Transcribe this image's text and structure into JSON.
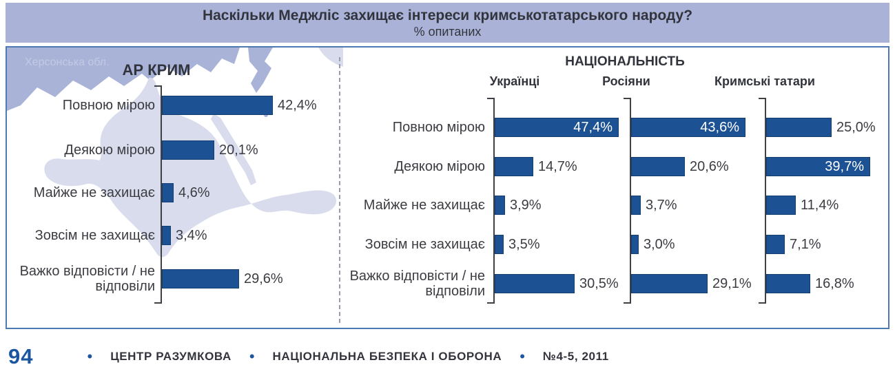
{
  "header": {
    "title": "Наскільки Меджліс захищає інтереси кримськотатарського народу?",
    "subtitle": "% опитаних"
  },
  "map": {
    "region_label": "Херсонська обл."
  },
  "colors": {
    "bar_fill": "#1c5294",
    "bar_border": "#143d70",
    "header_bg": "#aab3d7",
    "panel_border": "#4c79b2",
    "map_dark": "#a9b3d7",
    "map_light": "#d9dcec",
    "accent_blue": "#1c56a0",
    "text_dark": "#3b3c42"
  },
  "chart_data": [
    {
      "type": "bar",
      "orientation": "horizontal",
      "title": "АР КРИМ",
      "categories": [
        "Повною мірою",
        "Деякою мірою",
        "Майже не захищає",
        "Зовсім не захищає",
        "Важко відповісти / не відповіли"
      ],
      "values": [
        42.4,
        20.1,
        4.6,
        3.4,
        29.6
      ],
      "value_suffix": "%",
      "decimal_separator": ",",
      "xlim": [
        0,
        50
      ],
      "grid": false,
      "value_labels": "outside"
    },
    {
      "type": "bar",
      "orientation": "horizontal",
      "title": "НАЦІОНАЛЬНІСТЬ",
      "categories": [
        "Повною мірою",
        "Деякою мірою",
        "Майже не захищає",
        "Зовсім не захищає",
        "Важко відповісти / не відповіли"
      ],
      "series": [
        {
          "name": "Українці",
          "values": [
            47.4,
            14.7,
            3.9,
            3.5,
            30.5
          ]
        },
        {
          "name": "Росіяни",
          "values": [
            43.6,
            20.6,
            3.7,
            3.0,
            29.1
          ]
        },
        {
          "name": "Кримські татари",
          "values": [
            25.0,
            39.7,
            11.4,
            7.1,
            16.8
          ]
        }
      ],
      "value_suffix": "%",
      "decimal_separator": ",",
      "xlim": [
        0,
        50
      ],
      "grid": false,
      "value_labels": "outside, inside-white when value >= 35"
    }
  ],
  "footer": {
    "page_number": "94",
    "separator": "•",
    "publisher": "ЦЕНТР РАЗУМКОВА",
    "journal": "НАЦІОНАЛЬНА  БЕЗПЕКА  І  ОБОРОНА",
    "issue": "№4-5, 2011"
  }
}
